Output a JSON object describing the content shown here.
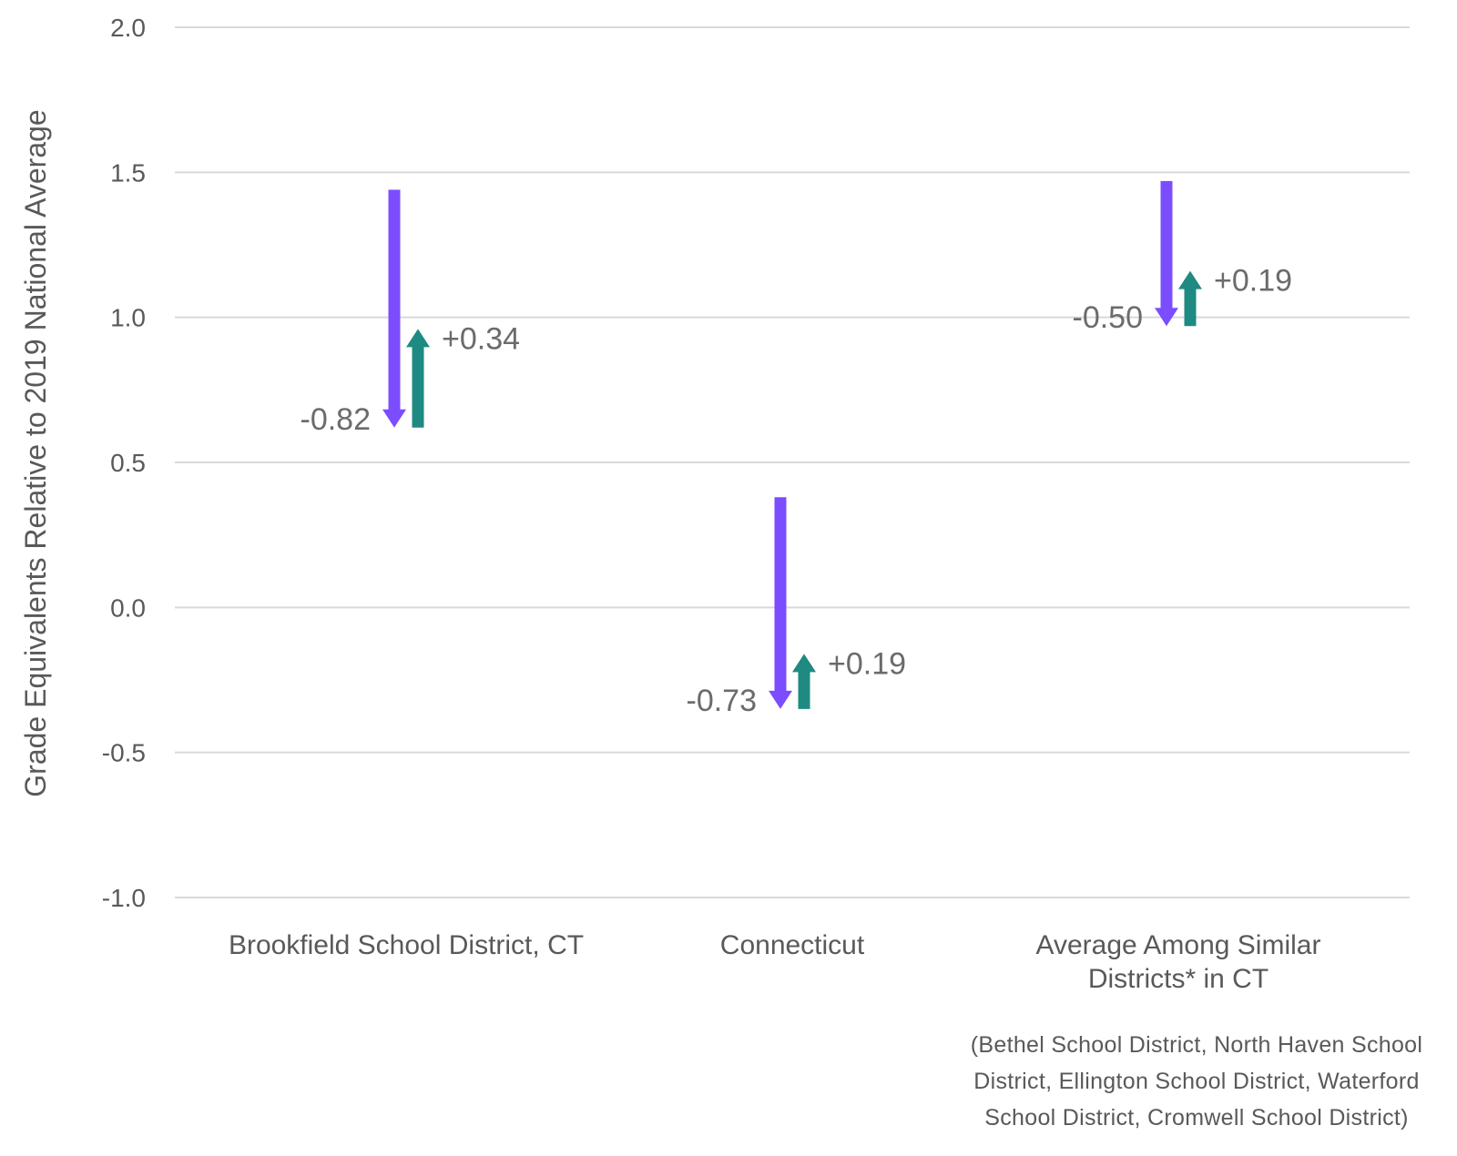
{
  "chart_data": {
    "type": "arrow",
    "ylabel": "Grade Equivalents Relative to 2019 National Average",
    "ylim": [
      -1.0,
      2.0
    ],
    "yticks": [
      2.0,
      1.5,
      1.0,
      0.5,
      0.0,
      -0.5,
      -1.0
    ],
    "ytick_labels": [
      "2.0",
      "1.5",
      "1.0",
      "0.5",
      "0.0",
      "-0.5",
      "-1.0"
    ],
    "grid": true,
    "categories": [
      [
        "Brookfield School District, CT"
      ],
      [
        "Connecticut"
      ],
      [
        "Average Among Similar",
        "Districts* in CT"
      ]
    ],
    "series": [
      {
        "values": [
          -0.82,
          -0.73,
          -0.5
        ],
        "labels": [
          "-0.82",
          "-0.73",
          "-0.50"
        ],
        "start": [
          1.44,
          0.38,
          1.47
        ],
        "color": "#7c4dff",
        "direction": "down"
      },
      {
        "values": [
          0.34,
          0.19,
          0.19
        ],
        "labels": [
          "+0.34",
          "+0.19",
          "+0.19"
        ],
        "start": [
          0.62,
          -0.35,
          0.97
        ],
        "color": "#1e8a82",
        "direction": "up"
      }
    ],
    "footnote": "(Bethel School District, North Haven School District, Ellington School District, Waterford School District, Cromwell School District)"
  }
}
